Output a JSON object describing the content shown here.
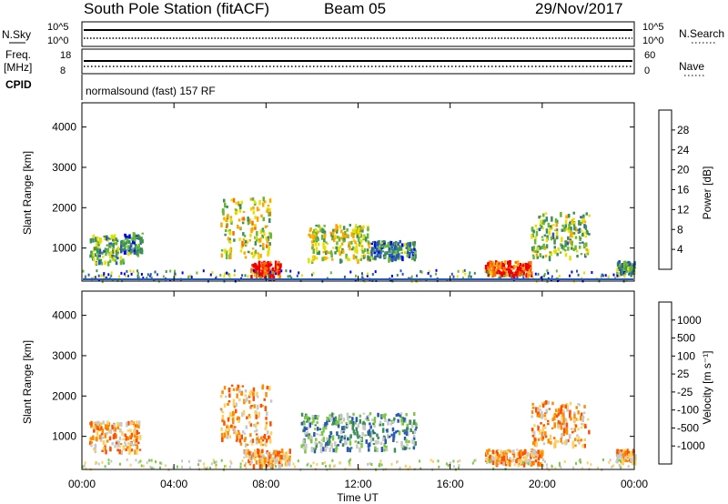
{
  "header": {
    "station": "South Pole Station (fitACF)",
    "beam": "Beam 05",
    "date": "29/Nov/2017"
  },
  "strips": {
    "nsky_label": "N.Sky",
    "nsearch_label": "N.Search",
    "freq_label_1": "Freq.",
    "freq_label_2": "[MHz]",
    "nave_label": "Nave",
    "cpid_label": "CPID",
    "cpid_text": "normalsound (fast) 157 RF",
    "noise_ticks": [
      "10^5",
      "10^0"
    ],
    "noise_ticks_right": [
      "10^5",
      "10^0"
    ],
    "freq_ticks": [
      "18",
      "8"
    ],
    "nave_ticks": [
      "60",
      "0"
    ]
  },
  "chart_data": [
    {
      "type": "heatmap",
      "panel": "power",
      "xlabel": "",
      "ylabel": "Slant Range [km]",
      "ylim": [
        180,
        4600
      ],
      "y_ticks": [
        "1000",
        "2000",
        "3000",
        "4000"
      ],
      "colorbar_label": "Power [dB]",
      "colorbar_ticks": [
        "4",
        "8",
        "12",
        "16",
        "20",
        "24",
        "28"
      ],
      "colorbar_colors": [
        "#0000ff",
        "#2a58b8",
        "#3b8f5a",
        "#68b830",
        "#e6e000",
        "#ffa500",
        "#ff6a00",
        "#ee0000"
      ],
      "echo_regions_hours_km": [
        {
          "t0": 0.3,
          "t1": 1.8,
          "r0": 650,
          "r1": 1350,
          "level": 0.4
        },
        {
          "t0": 1.8,
          "t1": 2.6,
          "r0": 900,
          "r1": 1400,
          "level": 0.3
        },
        {
          "t0": 6.0,
          "t1": 8.2,
          "r0": 800,
          "r1": 2300,
          "level": 0.55
        },
        {
          "t0": 7.3,
          "t1": 8.6,
          "r0": 300,
          "r1": 700,
          "level": 0.95
        },
        {
          "t0": 9.8,
          "t1": 12.5,
          "r0": 700,
          "r1": 1600,
          "level": 0.5
        },
        {
          "t0": 12.5,
          "t1": 14.5,
          "r0": 750,
          "r1": 1200,
          "level": 0.3
        },
        {
          "t0": 17.5,
          "t1": 19.5,
          "r0": 350,
          "r1": 700,
          "level": 0.9
        },
        {
          "t0": 19.5,
          "t1": 22.0,
          "r0": 800,
          "r1": 1900,
          "level": 0.45
        },
        {
          "t0": 23.2,
          "t1": 24.0,
          "r0": 400,
          "r1": 700,
          "level": 0.35
        }
      ]
    },
    {
      "type": "heatmap",
      "panel": "velocity",
      "xlabel": "Time UT",
      "ylabel": "Slant Range [km]",
      "ylim": [
        180,
        4600
      ],
      "y_ticks": [
        "1000",
        "2000",
        "3000",
        "4000"
      ],
      "x_ticks": [
        "00:00",
        "04:00",
        "08:00",
        "12:00",
        "16:00",
        "20:00",
        "00:00"
      ],
      "xlim_hours": [
        0,
        24
      ],
      "colorbar_label": "Velocity [m s⁻¹]",
      "colorbar_ticks": [
        "1000",
        "500",
        "100",
        "25",
        "-25",
        "-100",
        "-500",
        "-1000"
      ],
      "colorbar_colors": [
        "#2040ff",
        "#2a58b8",
        "#3b8f5a",
        "#7ac843",
        "#c8c8c8",
        "#ffd060",
        "#ff8c00",
        "#ff5000",
        "#ee0000"
      ],
      "echo_regions_hours_km": [
        {
          "t0": 0.3,
          "t1": 2.5,
          "r0": 650,
          "r1": 1400,
          "vel": "-300"
        },
        {
          "t0": 6.0,
          "t1": 8.2,
          "r0": 800,
          "r1": 2300,
          "vel": "-400"
        },
        {
          "t0": 7.0,
          "t1": 9.0,
          "r0": 300,
          "r1": 700,
          "vel": "-200"
        },
        {
          "t0": 9.5,
          "t1": 14.5,
          "r0": 700,
          "r1": 1600,
          "vel": "+200"
        },
        {
          "t0": 17.5,
          "t1": 20.0,
          "r0": 350,
          "r1": 700,
          "vel": "-300"
        },
        {
          "t0": 19.5,
          "t1": 22.0,
          "r0": 800,
          "r1": 1900,
          "vel": "-400"
        },
        {
          "t0": 23.2,
          "t1": 24.0,
          "r0": 400,
          "r1": 700,
          "vel": "-200"
        }
      ]
    }
  ]
}
